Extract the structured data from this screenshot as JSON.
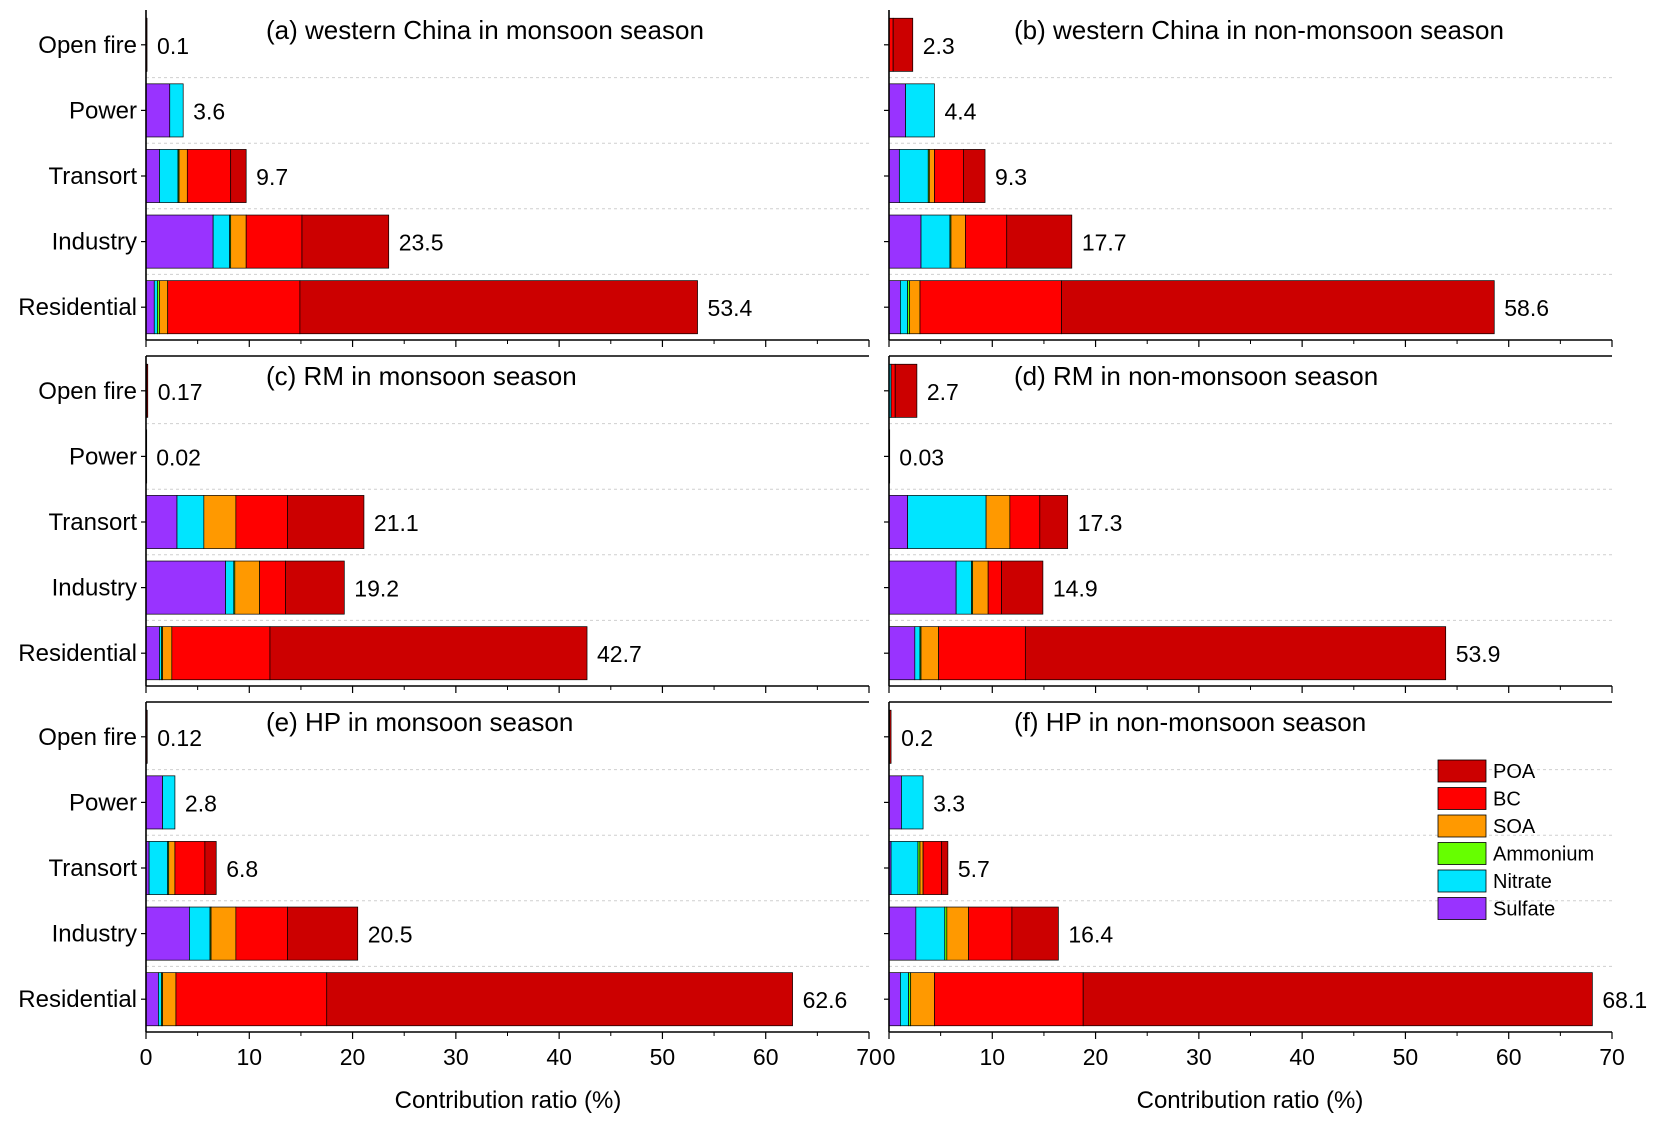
{
  "chart_data": {
    "type": "bar",
    "orientation": "horizontal",
    "stacked": true,
    "categories": [
      "Open fire",
      "Power",
      "Transort",
      "Industry",
      "Residential"
    ],
    "components": [
      {
        "name": "Sulfate",
        "color": "#9933FF"
      },
      {
        "name": "Nitrate",
        "color": "#00E5FF"
      },
      {
        "name": "Ammonium",
        "color": "#66FF00"
      },
      {
        "name": "SOA",
        "color": "#FF9900"
      },
      {
        "name": "BC",
        "color": "#FF0000"
      },
      {
        "name": "POA",
        "color": "#CC0000"
      }
    ],
    "legend": {
      "position": "lower-right",
      "entries": [
        "POA",
        "BC",
        "SOA",
        "Ammonium",
        "Nitrate",
        "Sulfate"
      ]
    },
    "xlabel": "Contribution ratio (%)",
    "xlim": [
      0,
      70
    ],
    "xticks": [
      0,
      10,
      20,
      30,
      40,
      50,
      60,
      70
    ],
    "grid": "horizontal dashed",
    "panels": [
      {
        "title": "(a) western China in monsoon season",
        "totals": [
          "0.1",
          "3.6",
          "9.7",
          "23.5",
          "53.4"
        ],
        "stacks": {
          "Open fire": [
            0,
            0,
            0,
            0,
            0.02,
            0.08
          ],
          "Power": [
            2.3,
            1.3,
            0,
            0,
            0,
            0
          ],
          "Transort": [
            1.3,
            1.8,
            0.1,
            0.8,
            4.2,
            1.5
          ],
          "Industry": [
            6.5,
            1.6,
            0.1,
            1.5,
            5.4,
            8.4
          ],
          "Residential": [
            0.8,
            0.3,
            0.2,
            0.8,
            12.8,
            38.5
          ]
        }
      },
      {
        "title": "(b) western China in non-monsoon season",
        "totals": [
          "2.3",
          "4.4",
          "9.3",
          "17.7",
          "58.6"
        ],
        "stacks": {
          "Open fire": [
            0,
            0,
            0,
            0,
            0.4,
            1.9
          ],
          "Power": [
            1.6,
            2.8,
            0,
            0,
            0,
            0
          ],
          "Transort": [
            1.0,
            2.8,
            0.1,
            0.5,
            2.8,
            2.1
          ],
          "Industry": [
            3.1,
            2.8,
            0.1,
            1.4,
            4.0,
            6.3
          ],
          "Residential": [
            1.1,
            0.7,
            0.2,
            1.0,
            13.7,
            41.9
          ]
        }
      },
      {
        "title": "(c) RM in monsoon season",
        "totals": [
          "0.17",
          "0.02",
          "21.1",
          "19.2",
          "42.7"
        ],
        "stacks": {
          "Open fire": [
            0,
            0,
            0,
            0,
            0.05,
            0.12
          ],
          "Power": [
            0.01,
            0.01,
            0,
            0,
            0,
            0
          ],
          "Transort": [
            3.0,
            2.6,
            0,
            3.1,
            5.0,
            7.4
          ],
          "Industry": [
            7.7,
            0.8,
            0.1,
            2.4,
            2.5,
            5.7
          ],
          "Residential": [
            1.3,
            0.2,
            0.1,
            0.9,
            9.5,
            30.7
          ]
        }
      },
      {
        "title": "(d) RM in non-monsoon season",
        "totals": [
          "2.7",
          "0.03",
          "17.3",
          "14.9",
          "53.9"
        ],
        "stacks": {
          "Open fire": [
            0,
            0.2,
            0,
            0,
            0.4,
            2.1
          ],
          "Power": [
            0.01,
            0.02,
            0,
            0,
            0,
            0
          ],
          "Transort": [
            1.8,
            7.6,
            0,
            2.3,
            2.9,
            2.7
          ],
          "Industry": [
            6.5,
            1.5,
            0.1,
            1.5,
            1.3,
            4.0
          ],
          "Residential": [
            2.5,
            0.5,
            0.1,
            1.7,
            8.4,
            40.7
          ]
        }
      },
      {
        "title": "(e) HP in monsoon season",
        "totals": [
          "0.12",
          "2.8",
          "6.8",
          "20.5",
          "62.6"
        ],
        "stacks": {
          "Open fire": [
            0,
            0,
            0,
            0,
            0.02,
            0.1
          ],
          "Power": [
            1.6,
            1.2,
            0,
            0,
            0,
            0
          ],
          "Transort": [
            0.3,
            1.8,
            0.1,
            0.6,
            2.9,
            1.1
          ],
          "Industry": [
            4.2,
            2.0,
            0.1,
            2.4,
            5.0,
            6.8
          ],
          "Residential": [
            1.2,
            0.3,
            0.1,
            1.3,
            14.6,
            45.1
          ]
        }
      },
      {
        "title": "(f) HP in non-monsoon season",
        "totals": [
          "0.2",
          "3.3",
          "5.7",
          "16.4",
          "68.1"
        ],
        "stacks": {
          "Open fire": [
            0,
            0,
            0,
            0,
            0.05,
            0.15
          ],
          "Power": [
            1.2,
            2.1,
            0,
            0,
            0,
            0
          ],
          "Transort": [
            0.2,
            2.6,
            0.2,
            0.3,
            1.8,
            0.6
          ],
          "Industry": [
            2.6,
            2.8,
            0.2,
            2.1,
            4.2,
            4.5
          ],
          "Residential": [
            1.1,
            0.8,
            0.2,
            2.3,
            14.4,
            49.3
          ]
        }
      }
    ]
  }
}
